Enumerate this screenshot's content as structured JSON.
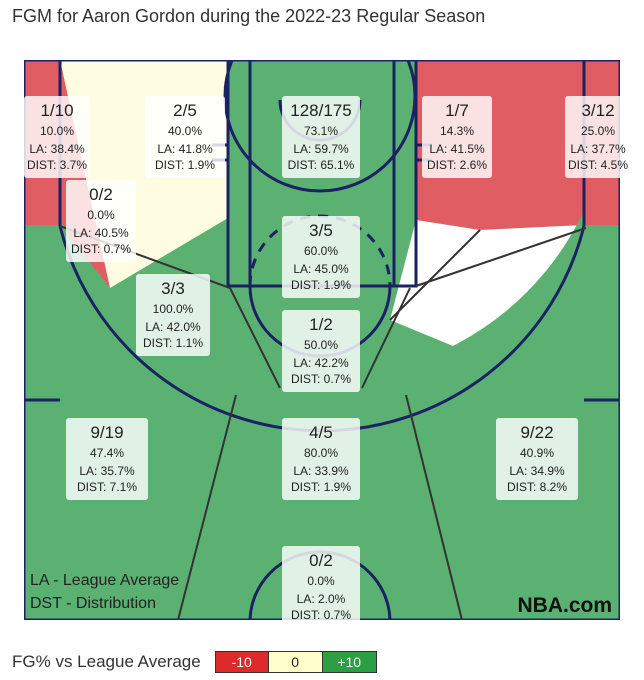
{
  "chart_data": {
    "type": "heatmap",
    "title": "FGM for Aaron Gordon during the 2022-23 Regular Season",
    "watermark": "NBA.com",
    "notes": [
      "LA - League Average",
      "DST - Distribution"
    ],
    "legend": {
      "label": "FG% vs League Average",
      "items": [
        {
          "label": "-10",
          "color": "#dd2b2b"
        },
        {
          "label": "0",
          "color": "#ffffcc"
        },
        {
          "label": "+10",
          "color": "#2e9e44"
        }
      ]
    },
    "zone_colors": {
      "red": "#e05d63",
      "yellow": "#fffde1",
      "white": "#ffffff",
      "green": "#5bb172",
      "lines": "#1b2263"
    },
    "zones": [
      {
        "id": "left-corner-3",
        "fgm": "1/10",
        "pct": "10.0%",
        "la": "LA: 38.4%",
        "dist": "DIST: 3.7%",
        "color": "red"
      },
      {
        "id": "left-wing-mid-upper",
        "fgm": "2/5",
        "pct": "40.0%",
        "la": "LA: 41.8%",
        "dist": "DIST: 1.9%",
        "color": "yellow"
      },
      {
        "id": "restricted-area",
        "fgm": "128/175",
        "pct": "73.1%",
        "la": "LA: 59.7%",
        "dist": "DIST: 65.1%",
        "color": "green"
      },
      {
        "id": "right-wing-mid-upper",
        "fgm": "1/7",
        "pct": "14.3%",
        "la": "LA: 41.5%",
        "dist": "DIST: 2.6%",
        "color": "red"
      },
      {
        "id": "right-corner-3",
        "fgm": "3/12",
        "pct": "25.0%",
        "la": "LA: 37.7%",
        "dist": "DIST: 4.5%",
        "color": "red"
      },
      {
        "id": "left-baseline-mid",
        "fgm": "0/2",
        "pct": "0.0%",
        "la": "LA: 40.5%",
        "dist": "DIST: 0.7%",
        "color": "red"
      },
      {
        "id": "paint-non-ra",
        "fgm": "3/5",
        "pct": "60.0%",
        "la": "LA: 45.0%",
        "dist": "DIST: 1.9%",
        "color": "green"
      },
      {
        "id": "left-elbow-mid",
        "fgm": "3/3",
        "pct": "100.0%",
        "la": "LA: 42.0%",
        "dist": "DIST: 1.1%",
        "color": "green"
      },
      {
        "id": "top-key-mid",
        "fgm": "1/2",
        "pct": "50.0%",
        "la": "LA: 42.2%",
        "dist": "DIST: 0.7%",
        "color": "green"
      },
      {
        "id": "left-wing-3",
        "fgm": "9/19",
        "pct": "47.4%",
        "la": "LA: 35.7%",
        "dist": "DIST: 7.1%",
        "color": "green"
      },
      {
        "id": "top-3",
        "fgm": "4/5",
        "pct": "80.0%",
        "la": "LA: 33.9%",
        "dist": "DIST: 1.9%",
        "color": "green"
      },
      {
        "id": "right-wing-3",
        "fgm": "9/22",
        "pct": "40.9%",
        "la": "LA: 34.9%",
        "dist": "DIST: 8.2%",
        "color": "green"
      },
      {
        "id": "backcourt",
        "fgm": "0/2",
        "pct": "0.0%",
        "la": "LA: 2.0%",
        "dist": "DIST: 0.7%",
        "color": "green"
      }
    ]
  }
}
